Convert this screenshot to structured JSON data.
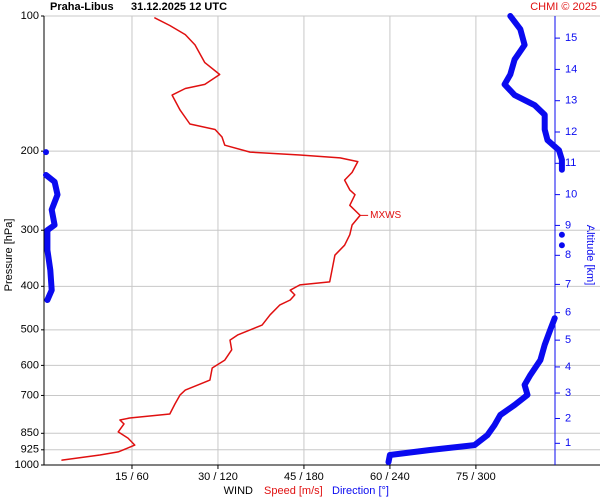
{
  "chart_data": {
    "type": "line",
    "title": "Praha-Libus",
    "subtitle": "31.12.2025 12 UTC",
    "credit": "CHMI © 2025",
    "y_label": "Pressure [hPa]",
    "y2_label": "Altitude [km]",
    "x_label": "WIND",
    "annotation": "MXWS",
    "y_scale": "log",
    "ylim": [
      1000,
      100
    ],
    "yticks": [
      100,
      200,
      300,
      400,
      500,
      600,
      700,
      850,
      925,
      1000
    ],
    "xlim": [
      0,
      88.8
    ],
    "x2lim": [
      0,
      355.2
    ],
    "xticks": [
      {
        "value": 15,
        "label": "15 / 60"
      },
      {
        "value": 30,
        "label": "30 / 120"
      },
      {
        "value": 45,
        "label": "45 / 180"
      },
      {
        "value": 60,
        "label": "60 / 240"
      },
      {
        "value": 75,
        "label": "75 / 300"
      }
    ],
    "y2ticks": [
      1,
      2,
      3,
      4,
      5,
      6,
      7,
      8,
      9,
      10,
      11,
      12,
      13,
      14,
      15
    ],
    "grid": true,
    "series": [
      {
        "name": "Speed [m/s]",
        "color": "#e01010",
        "pressure": [
          975,
          950,
          935,
          903,
          871,
          844,
          810,
          794,
          786,
          770,
          731,
          698,
          681,
          647,
          608,
          584,
          554,
          527,
          513,
          488,
          463,
          440,
          429,
          418,
          408,
          397,
          391,
          368,
          341,
          324,
          307,
          292,
          278,
          264,
          250,
          244,
          232,
          223,
          211,
          207,
          204,
          201,
          194,
          186,
          179,
          174,
          162,
          150,
          145,
          142,
          135,
          127,
          116,
          110,
          105,
          101
        ],
        "values": [
          2.8,
          9.4,
          12.6,
          15.5,
          14.3,
          12.6,
          13.6,
          12.9,
          14.6,
          21.6,
          22.5,
          23.4,
          24.3,
          28.6,
          29.0,
          31.2,
          32.4,
          32.1,
          33.5,
          37.7,
          39.1,
          40.8,
          42.6,
          43.4,
          42.6,
          44.3,
          49.5,
          49.9,
          50.4,
          52.1,
          53.0,
          53.4,
          54.8,
          53.0,
          53.9,
          53.0,
          52.1,
          53.4,
          54.4,
          51.3,
          44.3,
          35.6,
          31.2,
          30.7,
          29.5,
          25.1,
          23.4,
          22.0,
          24.3,
          27.7,
          30.3,
          27.7,
          26.0,
          24.3,
          21.6,
          19.0
        ]
      },
      {
        "name": "Direction [°]",
        "color": "#0a0af0",
        "axis": "x2",
        "pressure": [
          985,
          950,
          926,
          903,
          858,
          815,
          774,
          735,
          698,
          663,
          630,
          584,
          540,
          499,
          471,
          null,
          429,
          408,
          368,
          332,
          300,
          292,
          270,
          250,
          234,
          226,
          null,
          201,
          null,
          324,
          null,
          307,
          null,
          220,
          209,
          199,
          189,
          179,
          166,
          158,
          150,
          142,
          135,
          125,
          116,
          107,
          100
        ],
        "values": [
          239,
          240,
          268,
          299,
          308,
          313,
          317,
          327,
          336,
          334,
          338,
          345,
          348,
          352,
          355,
          null,
          1,
          4,
          3,
          1,
          1,
          6,
          4,
          8,
          6,
          0,
          null,
          0,
          null,
          360,
          null,
          360,
          null,
          360,
          360,
          358,
          350,
          348,
          348,
          341,
          327,
          320,
          324,
          327,
          334,
          331,
          324
        ]
      }
    ]
  }
}
